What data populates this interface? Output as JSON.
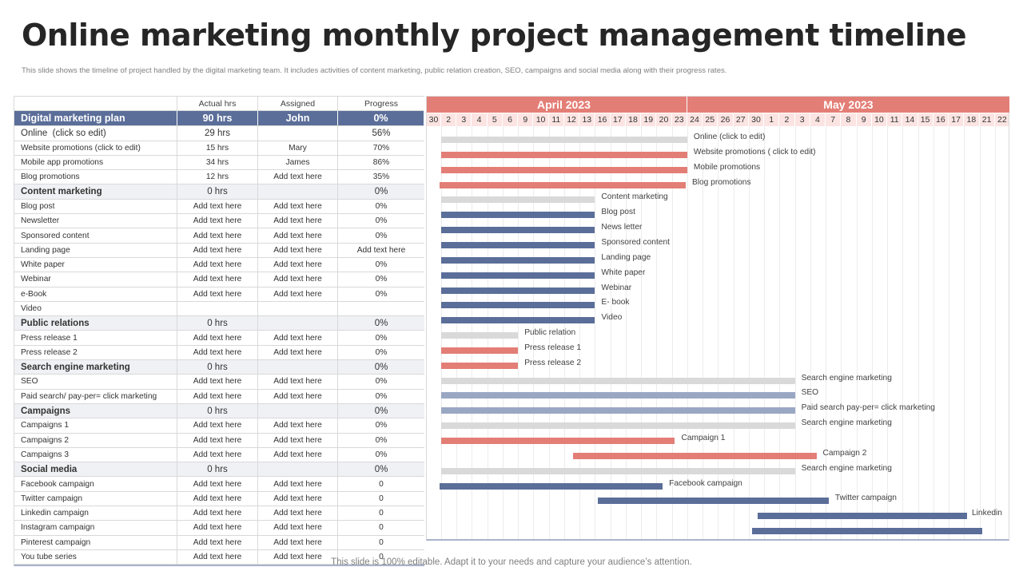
{
  "title": "Online marketing monthly project management timeline",
  "subtitle": "This slide shows the timeline of project handled by the digital marketing team. It includes activities of content marketing, public relation creation, SEO,  campaigns and social media along with their progress rates.",
  "footer": "This slide is 100% editable. Adapt it to your needs and capture your audience’s attention.",
  "table": {
    "headers": {
      "actual": "Actual hrs",
      "assigned": "Assigned",
      "progress": "Progress"
    },
    "plan": {
      "name": "Digital marketing plan",
      "hrs": "90 hrs",
      "assigned": "John",
      "progress": "0%"
    },
    "rows": [
      {
        "type": "online",
        "name": "Online  (click so edit)",
        "hrs": "29 hrs",
        "assigned": "",
        "progress": "56%"
      },
      {
        "type": "sub",
        "name": "Website promotions (click to edit)",
        "hrs": "15 hrs",
        "assigned": "Mary",
        "progress": "70%"
      },
      {
        "type": "sub",
        "name": "Mobile app promotions",
        "hrs": "34 hrs",
        "assigned": "James",
        "progress": "86%"
      },
      {
        "type": "sub",
        "name": "Blog promotions",
        "hrs": "12 hrs",
        "assigned": "Add text here",
        "progress": "35%"
      },
      {
        "type": "group",
        "name": "Content marketing",
        "hrs": "0 hrs",
        "assigned": "",
        "progress": "0%"
      },
      {
        "type": "sub",
        "name": "Blog post",
        "hrs": "Add text here",
        "assigned": "Add text here",
        "progress": "0%"
      },
      {
        "type": "sub",
        "name": "Newsletter",
        "hrs": "Add text here",
        "assigned": "Add text here",
        "progress": "0%"
      },
      {
        "type": "sub",
        "name": "Sponsored content",
        "hrs": "Add text here",
        "assigned": "Add text here",
        "progress": "0%"
      },
      {
        "type": "sub",
        "name": "Landing page",
        "hrs": "Add text here",
        "assigned": "Add text here",
        "progress": "Add text here"
      },
      {
        "type": "sub",
        "name": "White paper",
        "hrs": "Add text here",
        "assigned": "Add text here",
        "progress": "0%"
      },
      {
        "type": "sub",
        "name": "Webinar",
        "hrs": "Add text here",
        "assigned": "Add text here",
        "progress": "0%"
      },
      {
        "type": "sub",
        "name": "e-Book",
        "hrs": "Add text here",
        "assigned": "Add text here",
        "progress": "0%"
      },
      {
        "type": "sub",
        "name": "Video",
        "hrs": "",
        "assigned": "",
        "progress": ""
      },
      {
        "type": "group",
        "name": "Public relations",
        "hrs": "0 hrs",
        "assigned": "",
        "progress": "0%"
      },
      {
        "type": "sub",
        "name": "Press release 1",
        "hrs": "Add text here",
        "assigned": "Add text here",
        "progress": "0%"
      },
      {
        "type": "sub",
        "name": "Press release 2",
        "hrs": "Add text here",
        "assigned": "Add text here",
        "progress": "0%"
      },
      {
        "type": "group",
        "name": "Search engine marketing",
        "hrs": "0 hrs",
        "assigned": "",
        "progress": "0%"
      },
      {
        "type": "sub",
        "name": "SEO",
        "hrs": "Add text here",
        "assigned": "Add text here",
        "progress": "0%"
      },
      {
        "type": "sub",
        "name": "Paid search/ pay-per= click marketing",
        "hrs": "Add text here",
        "assigned": "Add text here",
        "progress": "0%"
      },
      {
        "type": "group",
        "name": "Campaigns",
        "hrs": "0 hrs",
        "assigned": "",
        "progress": "0%"
      },
      {
        "type": "sub",
        "name": "Campaigns 1",
        "hrs": "Add text here",
        "assigned": "Add text here",
        "progress": "0%"
      },
      {
        "type": "sub",
        "name": "Campaigns 2",
        "hrs": "Add text here",
        "assigned": "Add text here",
        "progress": "0%"
      },
      {
        "type": "sub",
        "name": "Campaigns 3",
        "hrs": "Add text here",
        "assigned": "Add text here",
        "progress": "0%"
      },
      {
        "type": "group",
        "name": "Social media",
        "hrs": "0 hrs",
        "assigned": "",
        "progress": "0%"
      },
      {
        "type": "sub",
        "name": "Facebook campaign",
        "hrs": "Add text here",
        "assigned": "Add text here",
        "progress": "0"
      },
      {
        "type": "sub",
        "name": "Twitter campaign",
        "hrs": "Add text here",
        "assigned": "Add text here",
        "progress": "0"
      },
      {
        "type": "sub",
        "name": "Linkedin campaign",
        "hrs": "Add text here",
        "assigned": "Add text here",
        "progress": "0"
      },
      {
        "type": "sub",
        "name": "Instagram campaign",
        "hrs": "Add text here",
        "assigned": "Add text here",
        "progress": "0"
      },
      {
        "type": "sub",
        "name": "Pinterest campaign",
        "hrs": "Add text here",
        "assigned": "Add text here",
        "progress": "0"
      },
      {
        "type": "sub",
        "name": "You tube series",
        "hrs": "Add text here",
        "assigned": "Add text here",
        "progress": "0"
      }
    ]
  },
  "gantt": {
    "months": [
      {
        "label": "April 2023",
        "first_day": 1,
        "last_day": 16
      },
      {
        "label": "May 2023",
        "first_day": 17,
        "last_day": 37
      }
    ],
    "days": [
      "30",
      "2",
      "3",
      "4",
      "5",
      "6",
      "9",
      "10",
      "11",
      "12",
      "13",
      "16",
      "17",
      "18",
      "19",
      "20",
      "23",
      "24",
      "25",
      "26",
      "27",
      "30",
      "1",
      "2",
      "3",
      "4",
      "7",
      "8",
      "9",
      "10",
      "11",
      "14",
      "15",
      "16",
      "17",
      "18",
      "21",
      "22"
    ],
    "colors": {
      "grey": "#d9d9d9",
      "red": "#e37e76",
      "blue": "#5b6e99",
      "lightblue": "#9aa7c3"
    },
    "tasks": [
      {
        "label": "Online (click to edit)",
        "start": 1,
        "end": 17,
        "color": "grey"
      },
      {
        "label": "Website promotions ( click to edit)",
        "start": 1,
        "end": 17,
        "color": "red"
      },
      {
        "label": "Mobile promotions",
        "start": 1,
        "end": 17,
        "color": "red"
      },
      {
        "label": "Blog promotions",
        "start": 0.9,
        "end": 16.9,
        "color": "red"
      },
      {
        "label": "Content marketing",
        "start": 1,
        "end": 11,
        "color": "grey"
      },
      {
        "label": "Blog post",
        "start": 1,
        "end": 11,
        "color": "blue"
      },
      {
        "label": "News letter",
        "start": 1,
        "end": 11,
        "color": "blue"
      },
      {
        "label": "Sponsored content",
        "start": 1,
        "end": 11,
        "color": "blue"
      },
      {
        "label": "Landing page",
        "start": 1,
        "end": 11,
        "color": "blue"
      },
      {
        "label": "White paper",
        "start": 1,
        "end": 11,
        "color": "blue"
      },
      {
        "label": "Webinar",
        "start": 1,
        "end": 11,
        "color": "blue"
      },
      {
        "label": "E- book",
        "start": 1,
        "end": 11,
        "color": "blue"
      },
      {
        "label": "Video",
        "start": 1,
        "end": 11,
        "color": "blue"
      },
      {
        "label": "Public relation",
        "start": 1,
        "end": 6,
        "color": "grey"
      },
      {
        "label": "Press release 1",
        "start": 1,
        "end": 6,
        "color": "red"
      },
      {
        "label": "Press release 2",
        "start": 1,
        "end": 6,
        "color": "red"
      },
      {
        "label": "Search engine marketing",
        "start": 1,
        "end": 24,
        "color": "grey"
      },
      {
        "label": "SEO",
        "start": 1,
        "end": 24,
        "color": "lightblue"
      },
      {
        "label": "Paid search pay-per= click marketing",
        "start": 1,
        "end": 24,
        "color": "lightblue"
      },
      {
        "label": "Search engine marketing",
        "start": 1,
        "end": 24,
        "color": "grey"
      },
      {
        "label": "Campaign  1",
        "start": 1,
        "end": 16.2,
        "color": "red"
      },
      {
        "label": "Campaign  2",
        "start": 9.6,
        "end": 25.4,
        "color": "red"
      },
      {
        "label": "Search engine marketing",
        "start": 1,
        "end": 24,
        "color": "grey"
      },
      {
        "label": "Facebook campaign",
        "start": 0.9,
        "end": 15.4,
        "color": "blue"
      },
      {
        "label": "Twitter campaign",
        "start": 11.2,
        "end": 26.2,
        "color": "blue"
      },
      {
        "label": "Linkedin",
        "start": 21.6,
        "end": 35.2,
        "color": "blue"
      },
      {
        "label": "",
        "start": 21.2,
        "end": 36.2,
        "color": "blue"
      }
    ]
  }
}
